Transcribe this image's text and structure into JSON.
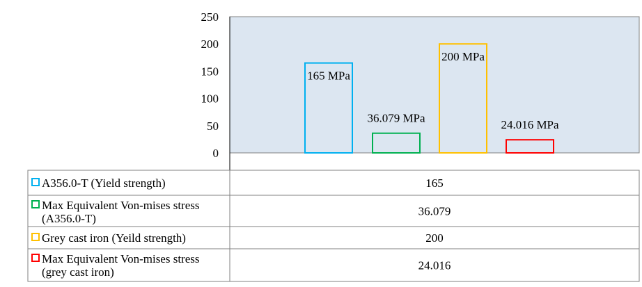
{
  "chart_data": {
    "type": "bar",
    "ylim": [
      0,
      250
    ],
    "yticks": [
      0,
      50,
      100,
      150,
      200,
      250
    ],
    "grid": false,
    "legend_placement": "bottom-table",
    "plot_background": "#dce6f1",
    "series": [
      {
        "name": "A356.0-T (Yield strength)",
        "value": 165,
        "data_label": "165 MPa",
        "table_value": "165",
        "color": "#00b0f0"
      },
      {
        "name": "Max Equivalent Von-mises stress (A356.0-T)",
        "name_lines": [
          "Max Equivalent Von-mises stress",
          "(A356.0-T)"
        ],
        "value": 36.079,
        "data_label": "36.079 MPa",
        "table_value": "36.079",
        "color": "#00b050"
      },
      {
        "name": "Grey cast iron (Yeild strength)",
        "value": 200,
        "data_label": "200 MPa",
        "table_value": "200",
        "color": "#ffc000"
      },
      {
        "name": "Max Equivalent Von-mises stress (grey cast iron)",
        "name_lines": [
          "Max Equivalent Von-mises stress",
          "(grey cast iron)"
        ],
        "value": 24.016,
        "data_label": "24.016 MPa",
        "table_value": "24.016",
        "color": "#ff0000"
      }
    ]
  }
}
